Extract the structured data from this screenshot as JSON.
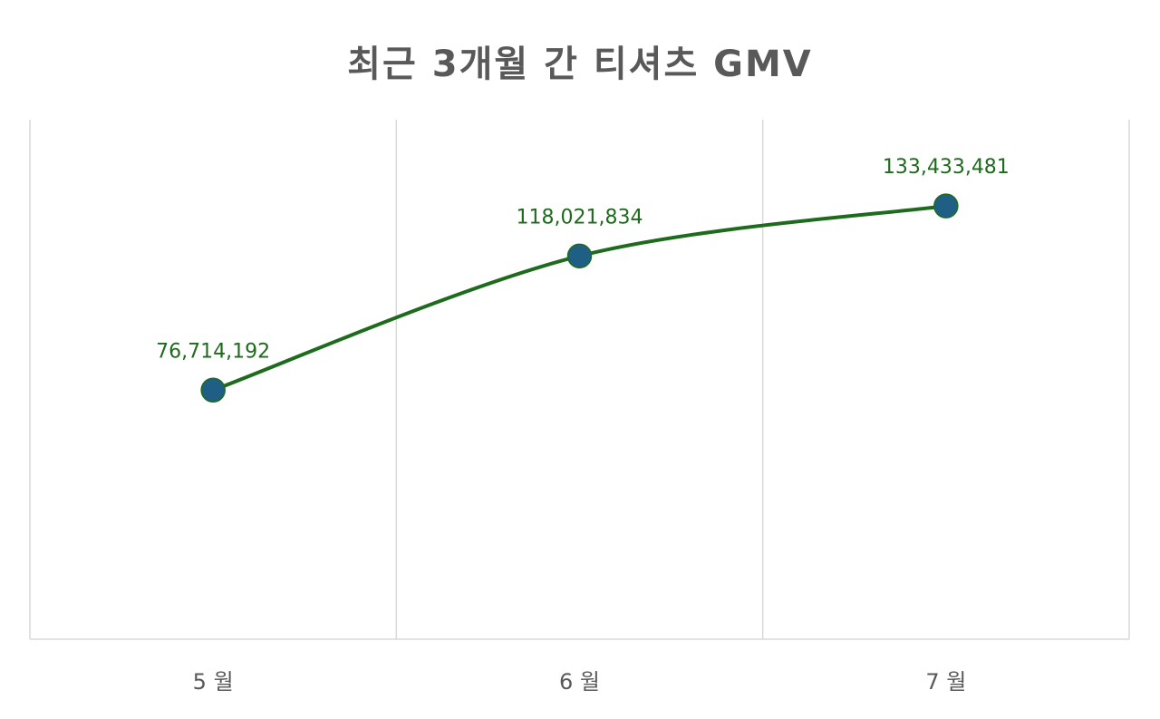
{
  "chart_data": {
    "type": "line",
    "title": "최근 3개월 간 티셔츠 GMV",
    "categories": [
      "5 월",
      "6 월",
      "7 월"
    ],
    "series": [
      {
        "values": [
          76714192,
          118021834,
          133433481
        ]
      }
    ],
    "data_labels": [
      "76,714,192",
      "118,021,834",
      "133,433,481"
    ],
    "ylim": [
      0,
      160000000
    ],
    "smooth": true,
    "grid": "vertical",
    "legend": "none",
    "colors": {
      "line": "#1e6b1e",
      "marker_fill": "#1f5f86",
      "marker_stroke": "#1e6b1e",
      "grid": "#d9d9d9",
      "text": "#595959"
    }
  }
}
